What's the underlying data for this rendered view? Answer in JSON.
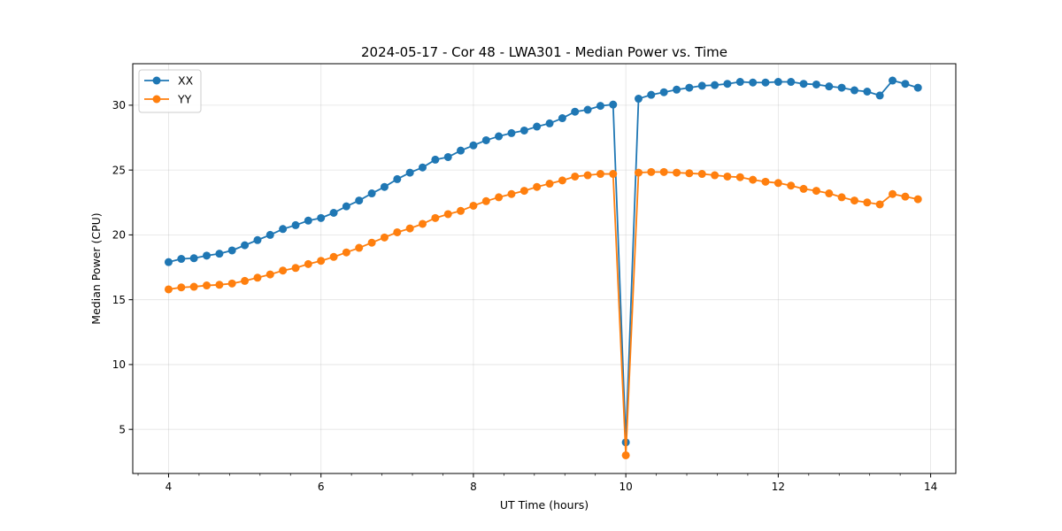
{
  "chart_data": {
    "type": "line",
    "title": "2024-05-17 - Cor 48 - LWA301 - Median Power vs. Time",
    "xlabel": "UT Time (hours)",
    "ylabel": "Median Power (CPU)",
    "xlim": [
      3.53,
      14.33
    ],
    "ylim": [
      1.6,
      33.2
    ],
    "xticks": [
      4,
      6,
      8,
      10,
      12,
      14
    ],
    "xtick_labels": [
      "4",
      "6",
      "8",
      "10",
      "12",
      "14"
    ],
    "xminor_step": 0.4,
    "yticks": [
      5,
      10,
      15,
      20,
      25,
      30
    ],
    "ytick_labels": [
      "5",
      "10",
      "15",
      "20",
      "25",
      "30"
    ],
    "grid": true,
    "legend_position": "top-left",
    "x": [
      4.0,
      4.167,
      4.333,
      4.5,
      4.667,
      4.833,
      5.0,
      5.167,
      5.333,
      5.5,
      5.667,
      5.833,
      6.0,
      6.167,
      6.333,
      6.5,
      6.667,
      6.833,
      7.0,
      7.167,
      7.333,
      7.5,
      7.667,
      7.833,
      8.0,
      8.167,
      8.333,
      8.5,
      8.667,
      8.833,
      9.0,
      9.167,
      9.333,
      9.5,
      9.667,
      9.833,
      10.0,
      10.167,
      10.333,
      10.5,
      10.667,
      10.833,
      11.0,
      11.167,
      11.333,
      11.5,
      11.667,
      11.833,
      12.0,
      12.167,
      12.333,
      12.5,
      12.667,
      12.833,
      13.0,
      13.167,
      13.333,
      13.5,
      13.667,
      13.833
    ],
    "series": [
      {
        "name": "XX",
        "color": "#1f77b4",
        "values": [
          17.9,
          18.15,
          18.2,
          18.4,
          18.55,
          18.8,
          19.2,
          19.6,
          20.0,
          20.45,
          20.75,
          21.1,
          21.3,
          21.7,
          22.2,
          22.65,
          23.2,
          23.7,
          24.3,
          24.8,
          25.2,
          25.8,
          26.0,
          26.5,
          26.9,
          27.3,
          27.6,
          27.85,
          28.05,
          28.35,
          28.6,
          29.0,
          29.5,
          29.65,
          29.95,
          30.05,
          4.0,
          30.5,
          30.8,
          31.0,
          31.2,
          31.35,
          31.5,
          31.55,
          31.65,
          31.8,
          31.75,
          31.75,
          31.8,
          31.8,
          31.65,
          31.6,
          31.45,
          31.35,
          31.15,
          31.05,
          30.75,
          31.9,
          31.65,
          31.35
        ]
      },
      {
        "name": "YY",
        "color": "#ff7f0e",
        "values": [
          15.8,
          15.95,
          16.0,
          16.1,
          16.15,
          16.25,
          16.45,
          16.7,
          16.95,
          17.25,
          17.45,
          17.75,
          18.0,
          18.3,
          18.65,
          19.0,
          19.4,
          19.8,
          20.2,
          20.5,
          20.85,
          21.3,
          21.6,
          21.85,
          22.25,
          22.6,
          22.9,
          23.15,
          23.4,
          23.7,
          23.95,
          24.2,
          24.5,
          24.6,
          24.7,
          24.7,
          3.0,
          24.8,
          24.85,
          24.85,
          24.8,
          24.75,
          24.7,
          24.6,
          24.5,
          24.45,
          24.25,
          24.1,
          24.0,
          23.8,
          23.55,
          23.4,
          23.2,
          22.9,
          22.65,
          22.5,
          22.35,
          23.15,
          22.95,
          22.75
        ]
      }
    ]
  }
}
